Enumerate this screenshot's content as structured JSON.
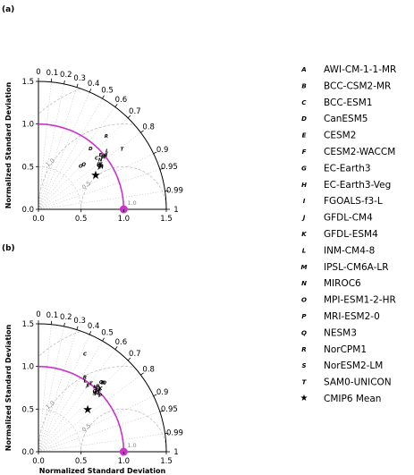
{
  "colors": {
    "reference": "#cc33cc",
    "rms": "#aaaaaa",
    "axis": "#000000",
    "grid": "#555555"
  },
  "chart_data": [
    {
      "type": "scatter",
      "subtype": "taylor-diagram",
      "panel_label": "(a)",
      "xlabel": "",
      "ylabel": "Normalized Standard Deviation",
      "std_range": [
        0,
        1.5
      ],
      "std_ticks": [
        "0.0",
        "0.5",
        "1.0",
        "1.5"
      ],
      "correlation_ticks": [
        "0",
        "0.1",
        "0.2",
        "0.3",
        "0.4",
        "0.5",
        "0.6",
        "0.7",
        "0.8",
        "0.9",
        "0.95",
        "0.99",
        "1"
      ],
      "rms_labels": [
        "0.5",
        "1.0",
        "1.5"
      ],
      "reference": {
        "std": 1.0,
        "corr": 1.0,
        "label": "1.0"
      },
      "points": [
        {
          "code": "A",
          "model": "AWI-CM-1-1-MR",
          "std": 0.98,
          "corr": 0.78
        },
        {
          "code": "B",
          "model": "BCC-CSM2-MR",
          "std": 1.01,
          "corr": 0.78
        },
        {
          "code": "C",
          "model": "BCC-ESM1",
          "std": 0.91,
          "corr": 0.75
        },
        {
          "code": "D",
          "model": "CanESM5",
          "std": 0.94,
          "corr": 0.65
        },
        {
          "code": "E",
          "model": "CESM2",
          "std": 0.97,
          "corr": 0.75
        },
        {
          "code": "F",
          "model": "CESM2-WACCM",
          "std": 0.98,
          "corr": 0.77
        },
        {
          "code": "G",
          "model": "EC-Earth3",
          "std": 0.88,
          "corr": 0.81
        },
        {
          "code": "H",
          "model": "EC-Earth3-Veg",
          "std": 0.89,
          "corr": 0.83
        },
        {
          "code": "I",
          "model": "FGOALS-f3-L",
          "std": 1.02,
          "corr": 0.78
        },
        {
          "code": "J",
          "model": "GFDL-CM4",
          "std": 0.87,
          "corr": 0.82
        },
        {
          "code": "K",
          "model": "GFDL-ESM4",
          "std": 0.9,
          "corr": 0.81
        },
        {
          "code": "L",
          "model": "INM-CM4-8",
          "std": 1.06,
          "corr": 0.76
        },
        {
          "code": "M",
          "model": "IPSL-CM6A-LR",
          "std": 0.89,
          "corr": 0.82
        },
        {
          "code": "N",
          "model": "MIROC6",
          "std": 0.93,
          "corr": 0.78
        },
        {
          "code": "O",
          "model": "MPI-ESM1-2-HR",
          "std": 0.71,
          "corr": 0.7
        },
        {
          "code": "P",
          "model": "MRI-ESM2-0",
          "std": 0.88,
          "corr": 0.8
        },
        {
          "code": "Q",
          "model": "NESM3",
          "std": 0.75,
          "corr": 0.71
        },
        {
          "code": "R",
          "model": "NorCPM1",
          "std": 1.17,
          "corr": 0.68
        },
        {
          "code": "S",
          "model": "NorESM2-LM",
          "std": 0.9,
          "corr": 0.81
        },
        {
          "code": "T",
          "model": "SAM0-UNICON",
          "std": 1.21,
          "corr": 0.81
        },
        {
          "code": "★",
          "model": "CMIP6 Mean",
          "std": 0.78,
          "corr": 0.86
        }
      ]
    },
    {
      "type": "scatter",
      "subtype": "taylor-diagram",
      "panel_label": "(b)",
      "xlabel": "Normalized Standard Deviation",
      "ylabel": "Normalized Standard Deviation",
      "std_range": [
        0,
        1.5
      ],
      "std_ticks": [
        "0.0",
        "0.5",
        "1.0",
        "1.5"
      ],
      "correlation_ticks": [
        "0",
        "0.1",
        "0.2",
        "0.3",
        "0.4",
        "0.5",
        "0.6",
        "0.7",
        "0.8",
        "0.9",
        "0.95",
        "0.99",
        "1"
      ],
      "rms_labels": [
        "0.5",
        "1.0",
        "1.5"
      ],
      "reference": {
        "std": 1.0,
        "corr": 1.0,
        "label": "1.0"
      },
      "points": [
        {
          "code": "A",
          "model": "AWI-CM-1-1-MR",
          "std": 1.02,
          "corr": 0.7
        },
        {
          "code": "B",
          "model": "BCC-CSM2-MR",
          "std": 1.04,
          "corr": 0.67
        },
        {
          "code": "C",
          "model": "BCC-ESM1",
          "std": 1.27,
          "corr": 0.43
        },
        {
          "code": "D",
          "model": "CanESM5",
          "std": 1.11,
          "corr": 0.68
        },
        {
          "code": "E",
          "model": "CESM2",
          "std": 0.98,
          "corr": 0.69
        },
        {
          "code": "F",
          "model": "CESM2-WACCM",
          "std": 1.01,
          "corr": 0.68
        },
        {
          "code": "G",
          "model": "EC-Earth3",
          "std": 0.97,
          "corr": 0.68
        },
        {
          "code": "H",
          "model": "EC-Earth3-Veg",
          "std": 0.99,
          "corr": 0.7
        },
        {
          "code": "I",
          "model": "FGOALS-f3-L",
          "std": 0.98,
          "corr": 0.6
        },
        {
          "code": "J",
          "model": "GFDL-CM4",
          "std": 0.97,
          "corr": 0.59
        },
        {
          "code": "K",
          "model": "GFDL-ESM4",
          "std": 1.04,
          "corr": 0.7
        },
        {
          "code": "L",
          "model": "INM-CM4-8",
          "std": 1.0,
          "corr": 0.55
        },
        {
          "code": "M",
          "model": "IPSL-CM6A-LR",
          "std": 0.97,
          "corr": 0.71
        },
        {
          "code": "N",
          "model": "MIROC6",
          "std": 1.01,
          "corr": 0.66
        },
        {
          "code": "O",
          "model": "MPI-ESM1-2-HR",
          "std": 1.1,
          "corr": 0.67
        },
        {
          "code": "P",
          "model": "MRI-ESM2-0",
          "std": 0.98,
          "corr": 0.74
        },
        {
          "code": "Q",
          "model": "NESM3",
          "std": 1.12,
          "corr": 0.69
        },
        {
          "code": "R",
          "model": "NorCPM1",
          "std": 1.03,
          "corr": 0.53
        },
        {
          "code": "S",
          "model": "NorESM2-LM",
          "std": 0.95,
          "corr": 0.69
        },
        {
          "code": "T",
          "model": "SAM0-UNICON",
          "std": 1.01,
          "corr": 0.61
        },
        {
          "code": "★",
          "model": "CMIP6 Mean",
          "std": 0.76,
          "corr": 0.76
        }
      ]
    }
  ],
  "legend": [
    {
      "code": "A",
      "label": "AWI-CM-1-1-MR"
    },
    {
      "code": "B",
      "label": "BCC-CSM2-MR"
    },
    {
      "code": "C",
      "label": "BCC-ESM1"
    },
    {
      "code": "D",
      "label": "CanESM5"
    },
    {
      "code": "E",
      "label": "CESM2"
    },
    {
      "code": "F",
      "label": "CESM2-WACCM"
    },
    {
      "code": "G",
      "label": "EC-Earth3"
    },
    {
      "code": "H",
      "label": "EC-Earth3-Veg"
    },
    {
      "code": "I",
      "label": "FGOALS-f3-L"
    },
    {
      "code": "J",
      "label": "GFDL-CM4"
    },
    {
      "code": "K",
      "label": "GFDL-ESM4"
    },
    {
      "code": "L",
      "label": "INM-CM4-8"
    },
    {
      "code": "M",
      "label": "IPSL-CM6A-LR"
    },
    {
      "code": "N",
      "label": "MIROC6"
    },
    {
      "code": "O",
      "label": "MPI-ESM1-2-HR"
    },
    {
      "code": "P",
      "label": "MRI-ESM2-0"
    },
    {
      "code": "Q",
      "label": "NESM3"
    },
    {
      "code": "R",
      "label": "NorCPM1"
    },
    {
      "code": "S",
      "label": "NorESM2-LM"
    },
    {
      "code": "T",
      "label": "SAM0-UNICON"
    },
    {
      "code": "★",
      "label": "CMIP6 Mean"
    }
  ]
}
